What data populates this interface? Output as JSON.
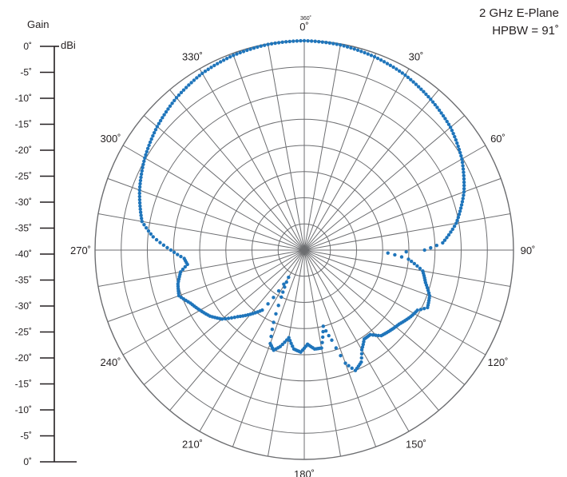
{
  "chart_data": {
    "type": "polar",
    "title": "2 GHz E-Plane",
    "subtitle": "HPBW = 91˚",
    "gain_scale": {
      "label": "Gain",
      "unit": "dBi",
      "ticks": [
        "0˚",
        "-5˚",
        "-10˚",
        "-15˚",
        "-20˚",
        "-25˚",
        "-30˚",
        "-35˚",
        "-40˚",
        "-35˚",
        "-30˚",
        "-25˚",
        "-20˚",
        "-15˚",
        "-10˚",
        "-5˚",
        "0˚"
      ]
    },
    "angle_labels": [
      {
        "angle": 0,
        "text": "0˚"
      },
      {
        "angle": 30,
        "text": "30˚"
      },
      {
        "angle": 60,
        "text": "60˚"
      },
      {
        "angle": 90,
        "text": "90˚"
      },
      {
        "angle": 120,
        "text": "120˚"
      },
      {
        "angle": 150,
        "text": "150˚"
      },
      {
        "angle": 180,
        "text": "180˚"
      },
      {
        "angle": 210,
        "text": "210˚"
      },
      {
        "angle": 240,
        "text": "240˚"
      },
      {
        "angle": 270,
        "text": "270˚"
      },
      {
        "angle": 300,
        "text": "300˚"
      },
      {
        "angle": 330,
        "text": "330˚"
      }
    ],
    "top_small_label": "360˚",
    "r_range_dB": [
      -40,
      0
    ],
    "ring_step_dB": 5,
    "spoke_step_deg": 10,
    "grid": true,
    "series_color": "#1f75bb",
    "series": [
      {
        "name": "",
        "points": [
          [
            0,
            0
          ],
          [
            10,
            -0.2
          ],
          [
            20,
            -0.7
          ],
          [
            30,
            -1.4
          ],
          [
            40,
            -2.4
          ],
          [
            50,
            -3.5
          ],
          [
            60,
            -5.2
          ],
          [
            70,
            -7.5
          ],
          [
            80,
            -10.5
          ],
          [
            87,
            -13.5
          ],
          [
            90,
            -17
          ],
          [
            92,
            -24
          ],
          [
            95,
            -20
          ],
          [
            100,
            -17
          ],
          [
            105,
            -16
          ],
          [
            110,
            -14.5
          ],
          [
            115,
            -14
          ],
          [
            118,
            -15.5
          ],
          [
            122,
            -16
          ],
          [
            128,
            -17
          ],
          [
            133,
            -17.5
          ],
          [
            138,
            -18
          ],
          [
            142,
            -19.5
          ],
          [
            146,
            -19.5
          ],
          [
            150,
            -18
          ],
          [
            153,
            -16
          ],
          [
            157,
            -15
          ],
          [
            160,
            -17
          ],
          [
            163,
            -22
          ],
          [
            166,
            -25
          ],
          [
            170,
            -21
          ],
          [
            174,
            -21
          ],
          [
            178,
            -22
          ],
          [
            182,
            -20.5
          ],
          [
            186,
            -21
          ],
          [
            190,
            -23
          ],
          [
            194,
            -21
          ],
          [
            197,
            -20
          ],
          [
            200,
            -21
          ],
          [
            203,
            -25
          ],
          [
            206,
            -30
          ],
          [
            210,
            -34
          ],
          [
            215,
            -26
          ],
          [
            220,
            -24
          ],
          [
            225,
            -22
          ],
          [
            230,
            -19.5
          ],
          [
            235,
            -18
          ],
          [
            240,
            -17
          ],
          [
            245,
            -16
          ],
          [
            250,
            -14.5
          ],
          [
            255,
            -15
          ],
          [
            260,
            -16
          ],
          [
            263,
            -17.5
          ],
          [
            266,
            -17
          ],
          [
            270,
            -14.5
          ],
          [
            275,
            -11
          ],
          [
            280,
            -8.5
          ],
          [
            290,
            -6.5
          ],
          [
            300,
            -4.8
          ],
          [
            310,
            -3.3
          ],
          [
            320,
            -2
          ],
          [
            330,
            -1
          ],
          [
            340,
            -0.4
          ],
          [
            350,
            -0.1
          ],
          [
            360,
            0
          ]
        ]
      }
    ]
  }
}
